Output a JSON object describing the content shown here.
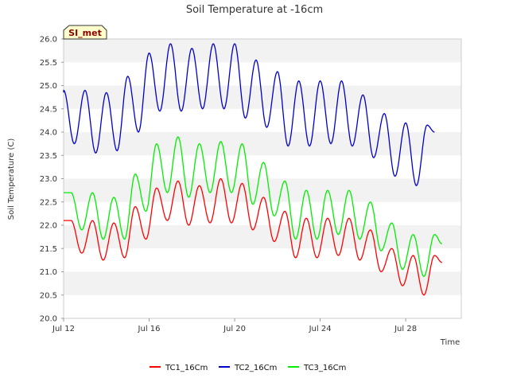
{
  "chart_data": {
    "type": "line",
    "title": "Soil Temperature at -16cm",
    "xlabel": "Time",
    "ylabel": "Soil Temperature (C)",
    "badge": "SI_met",
    "ylim": [
      20.0,
      26.0
    ],
    "yticks": [
      "20.0",
      "20.5",
      "21.0",
      "21.5",
      "22.0",
      "22.5",
      "23.0",
      "23.5",
      "24.0",
      "24.5",
      "25.0",
      "25.5",
      "26.0"
    ],
    "xlim": [
      12,
      30.6
    ],
    "xticks": [
      {
        "day": 12,
        "label": "Jul 12"
      },
      {
        "day": 16,
        "label": "Jul 16"
      },
      {
        "day": 20,
        "label": "Jul 20"
      },
      {
        "day": 24,
        "label": "Jul 24"
      },
      {
        "day": 28,
        "label": "Jul 28"
      }
    ],
    "grid": "horizontal-bands",
    "legend_position": "bottom",
    "series": [
      {
        "name": "TC1_16Cm",
        "color": "#ff0000",
        "daily": [
          {
            "day": 12.35,
            "max": 22.1,
            "min": 21.4
          },
          {
            "day": 13.35,
            "max": 22.1,
            "min": 21.25
          },
          {
            "day": 14.35,
            "max": 22.05,
            "min": 21.3
          },
          {
            "day": 15.35,
            "max": 22.4,
            "min": 21.7
          },
          {
            "day": 16.35,
            "max": 22.8,
            "min": 22.1
          },
          {
            "day": 17.35,
            "max": 22.95,
            "min": 22.0
          },
          {
            "day": 18.35,
            "max": 22.85,
            "min": 22.05
          },
          {
            "day": 19.35,
            "max": 23.0,
            "min": 22.05
          },
          {
            "day": 20.35,
            "max": 22.9,
            "min": 21.9
          },
          {
            "day": 21.35,
            "max": 22.6,
            "min": 21.65
          },
          {
            "day": 22.35,
            "max": 22.3,
            "min": 21.3
          },
          {
            "day": 23.35,
            "max": 22.15,
            "min": 21.3
          },
          {
            "day": 24.35,
            "max": 22.15,
            "min": 21.35
          },
          {
            "day": 25.35,
            "max": 22.15,
            "min": 21.25
          },
          {
            "day": 26.35,
            "max": 21.9,
            "min": 21.0
          },
          {
            "day": 27.35,
            "max": 21.5,
            "min": 20.7
          },
          {
            "day": 28.35,
            "max": 21.35,
            "min": 20.5
          },
          {
            "day": 29.35,
            "max": 21.35,
            "min": 21.2
          }
        ],
        "start": 22.1,
        "end": 21.2
      },
      {
        "name": "TC2_16Cm",
        "color": "#0000cc",
        "daily": [
          {
            "day": 12.0,
            "max": 24.9,
            "min": 23.75
          },
          {
            "day": 13.0,
            "max": 24.9,
            "min": 23.55
          },
          {
            "day": 14.0,
            "max": 24.85,
            "min": 23.6
          },
          {
            "day": 15.0,
            "max": 25.2,
            "min": 24.0
          },
          {
            "day": 16.0,
            "max": 25.7,
            "min": 24.45
          },
          {
            "day": 17.0,
            "max": 25.9,
            "min": 24.45
          },
          {
            "day": 18.0,
            "max": 25.8,
            "min": 24.5
          },
          {
            "day": 19.0,
            "max": 25.9,
            "min": 24.5
          },
          {
            "day": 20.0,
            "max": 25.9,
            "min": 24.3
          },
          {
            "day": 21.0,
            "max": 25.55,
            "min": 24.1
          },
          {
            "day": 22.0,
            "max": 25.3,
            "min": 23.7
          },
          {
            "day": 23.0,
            "max": 25.1,
            "min": 23.7
          },
          {
            "day": 24.0,
            "max": 25.1,
            "min": 23.75
          },
          {
            "day": 25.0,
            "max": 25.1,
            "min": 23.7
          },
          {
            "day": 26.0,
            "max": 24.8,
            "min": 23.45
          },
          {
            "day": 27.0,
            "max": 24.4,
            "min": 23.05
          },
          {
            "day": 28.0,
            "max": 24.2,
            "min": 22.85
          },
          {
            "day": 29.0,
            "max": 24.15,
            "min": 23.95
          }
        ],
        "start": 24.85,
        "end": 24.0
      },
      {
        "name": "TC3_16Cm",
        "color": "#00ee00",
        "daily": [
          {
            "day": 12.35,
            "max": 22.7,
            "min": 21.9
          },
          {
            "day": 13.35,
            "max": 22.7,
            "min": 21.7
          },
          {
            "day": 14.35,
            "max": 22.6,
            "min": 21.7
          },
          {
            "day": 15.35,
            "max": 23.1,
            "min": 22.3
          },
          {
            "day": 16.35,
            "max": 23.75,
            "min": 22.7
          },
          {
            "day": 17.35,
            "max": 23.9,
            "min": 22.6
          },
          {
            "day": 18.35,
            "max": 23.75,
            "min": 22.7
          },
          {
            "day": 19.35,
            "max": 23.8,
            "min": 22.7
          },
          {
            "day": 20.35,
            "max": 23.75,
            "min": 22.45
          },
          {
            "day": 21.35,
            "max": 23.35,
            "min": 22.2
          },
          {
            "day": 22.35,
            "max": 22.95,
            "min": 21.7
          },
          {
            "day": 23.35,
            "max": 22.75,
            "min": 21.7
          },
          {
            "day": 24.35,
            "max": 22.75,
            "min": 21.8
          },
          {
            "day": 25.35,
            "max": 22.75,
            "min": 21.7
          },
          {
            "day": 26.35,
            "max": 22.5,
            "min": 21.45
          },
          {
            "day": 27.35,
            "max": 22.05,
            "min": 21.05
          },
          {
            "day": 28.35,
            "max": 21.8,
            "min": 20.9
          },
          {
            "day": 29.35,
            "max": 21.8,
            "min": 21.6
          }
        ],
        "start": 22.7,
        "end": 21.6
      }
    ]
  }
}
